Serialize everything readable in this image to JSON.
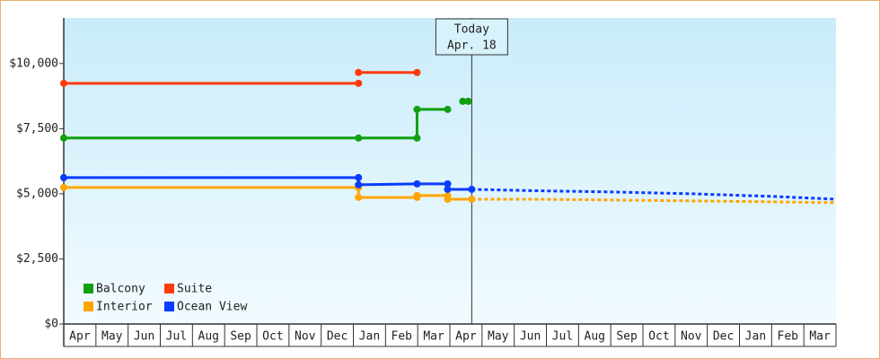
{
  "chart_data": {
    "type": "line",
    "categories": [
      "Apr",
      "May",
      "Jun",
      "Jul",
      "Aug",
      "Sep",
      "Oct",
      "Nov",
      "Dec",
      "Jan",
      "Feb",
      "Mar",
      "Apr",
      "May",
      "Jun",
      "Jul",
      "Aug",
      "Sep",
      "Oct",
      "Nov",
      "Dec",
      "Jan",
      "Feb",
      "Mar"
    ],
    "xlim": [
      0,
      24
    ],
    "ylim": [
      0,
      11750
    ],
    "yticks": [
      {
        "value": 0,
        "label": "$0"
      },
      {
        "value": 2500,
        "label": "$2,500"
      },
      {
        "value": 5000,
        "label": "$5,000"
      },
      {
        "value": 7500,
        "label": "$7,500"
      },
      {
        "value": 10000,
        "label": "$10,000"
      }
    ],
    "annotation": {
      "lines": [
        "Today",
        "Apr. 18"
      ],
      "x": 12.68
    },
    "legend": "bottom-left",
    "series": [
      {
        "name": "Balcony",
        "color": "#10a010",
        "x": [
          0,
          9.16,
          10.98,
          10.98,
          11.93,
          null,
          12.4,
          12.57
        ],
        "values": [
          7140,
          7140,
          7140,
          8240,
          8240,
          null,
          8550,
          8550
        ]
      },
      {
        "name": "Suite",
        "color": "#ff3a0a",
        "x": [
          0,
          9.16,
          null,
          9.16,
          10.98
        ],
        "values": [
          9240,
          9240,
          null,
          9655,
          9655
        ]
      },
      {
        "name": "Interior",
        "color": "#ffa500",
        "x": [
          0,
          9.16,
          9.16,
          10.98,
          10.98,
          11.93,
          11.93,
          12.68,
          14.5,
          17,
          20,
          22,
          24
        ],
        "values": [
          5240,
          5240,
          4860,
          4860,
          4930,
          4930,
          4790,
          4790,
          4790,
          4760,
          4720,
          4690,
          4655
        ]
      },
      {
        "name": "Ocean View",
        "color": "#0a3cff",
        "x": [
          0,
          9.16,
          9.16,
          10.98,
          11.93,
          11.93,
          12.68,
          14.5,
          17,
          19.5,
          22,
          24
        ],
        "values": [
          5620,
          5620,
          5345,
          5380,
          5380,
          5170,
          5170,
          5120,
          5070,
          5000,
          4900,
          4790
        ]
      }
    ]
  }
}
